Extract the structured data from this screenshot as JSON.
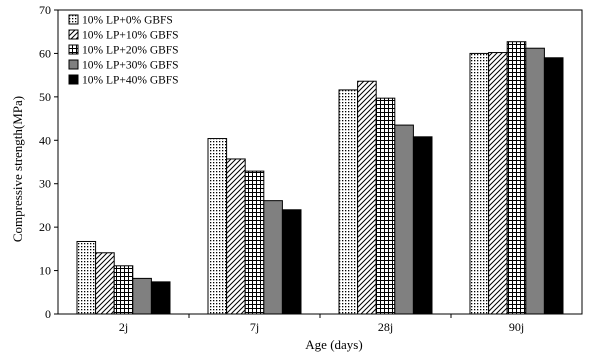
{
  "chart_data": {
    "type": "bar",
    "title": "",
    "xlabel": "Age (days)",
    "ylabel": "Compressive strength(MPa)",
    "ylim": [
      0,
      70
    ],
    "yticks": [
      0,
      10,
      20,
      30,
      40,
      50,
      60,
      70
    ],
    "grid": false,
    "legend_position": "top-left",
    "categories": [
      "2j",
      "7j",
      "28j",
      "90j"
    ],
    "series": [
      {
        "name": "10% LP+0% GBFS",
        "values": [
          16.7,
          40.4,
          51.6,
          60.0
        ],
        "pattern": "dots",
        "color": "#ffffff"
      },
      {
        "name": "10% LP+10% GBFS",
        "values": [
          14.1,
          35.7,
          53.6,
          60.2
        ],
        "pattern": "diagonal",
        "color": "#ffffff"
      },
      {
        "name": "10% LP+20% GBFS",
        "values": [
          11.1,
          32.9,
          49.7,
          62.7
        ],
        "pattern": "grid",
        "color": "#ffffff"
      },
      {
        "name": "10% LP+30% GBFS",
        "values": [
          8.2,
          26.1,
          43.5,
          61.2
        ],
        "pattern": "solid",
        "color": "#808080"
      },
      {
        "name": "10% LP+40% GBFS",
        "values": [
          7.4,
          24.0,
          40.8,
          59.0
        ],
        "pattern": "solid",
        "color": "#000000"
      }
    ]
  }
}
